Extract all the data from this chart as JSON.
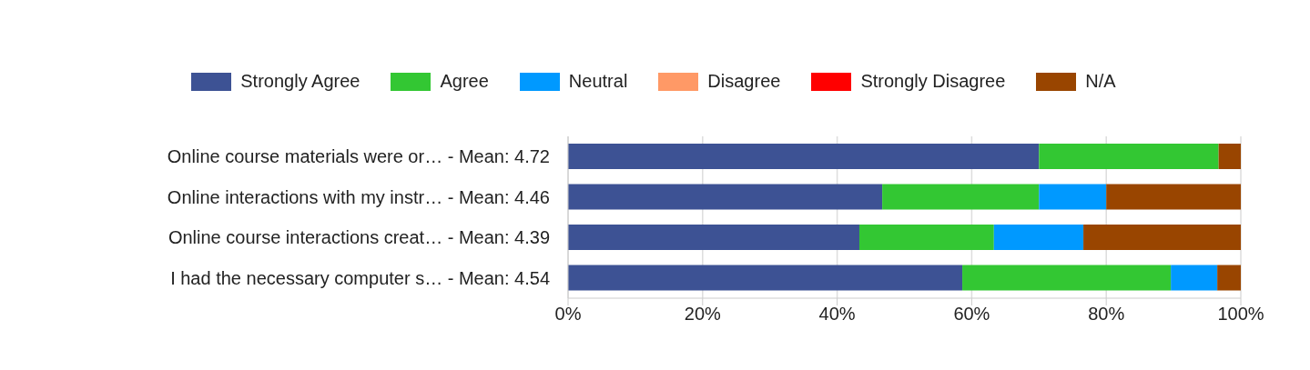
{
  "chart_data": {
    "type": "bar",
    "orientation": "horizontal",
    "stacked": true,
    "categories": [
      "Online course materials were or… - Mean: 4.72",
      "Online interactions with my instr… - Mean: 4.46",
      "Online course interactions creat… - Mean: 4.39",
      "I had the necessary computer s… - Mean: 4.54"
    ],
    "series": [
      {
        "name": "Strongly Agree",
        "color": "#3d5294",
        "values": [
          70.0,
          46.7,
          43.3,
          58.6
        ]
      },
      {
        "name": "Agree",
        "color": "#33c733",
        "values": [
          26.7,
          23.3,
          20.0,
          31.0
        ]
      },
      {
        "name": "Neutral",
        "color": "#0099ff",
        "values": [
          0,
          10.0,
          13.3,
          6.9
        ]
      },
      {
        "name": "Disagree",
        "color": "#ff9966",
        "values": [
          0,
          0,
          0,
          0
        ]
      },
      {
        "name": "Strongly Disagree",
        "color": "#ff0000",
        "values": [
          0,
          0,
          0,
          0
        ]
      },
      {
        "name": "N/A",
        "color": "#994500",
        "values": [
          3.3,
          20.0,
          23.4,
          3.5
        ]
      }
    ],
    "xlim": [
      0,
      100
    ],
    "xticks": [
      {
        "value": 0,
        "label": "0%"
      },
      {
        "value": 20,
        "label": "20%"
      },
      {
        "value": 40,
        "label": "40%"
      },
      {
        "value": 60,
        "label": "60%"
      },
      {
        "value": 80,
        "label": "80%"
      },
      {
        "value": 100,
        "label": "100%"
      }
    ],
    "grid": "x",
    "legend": "top"
  }
}
